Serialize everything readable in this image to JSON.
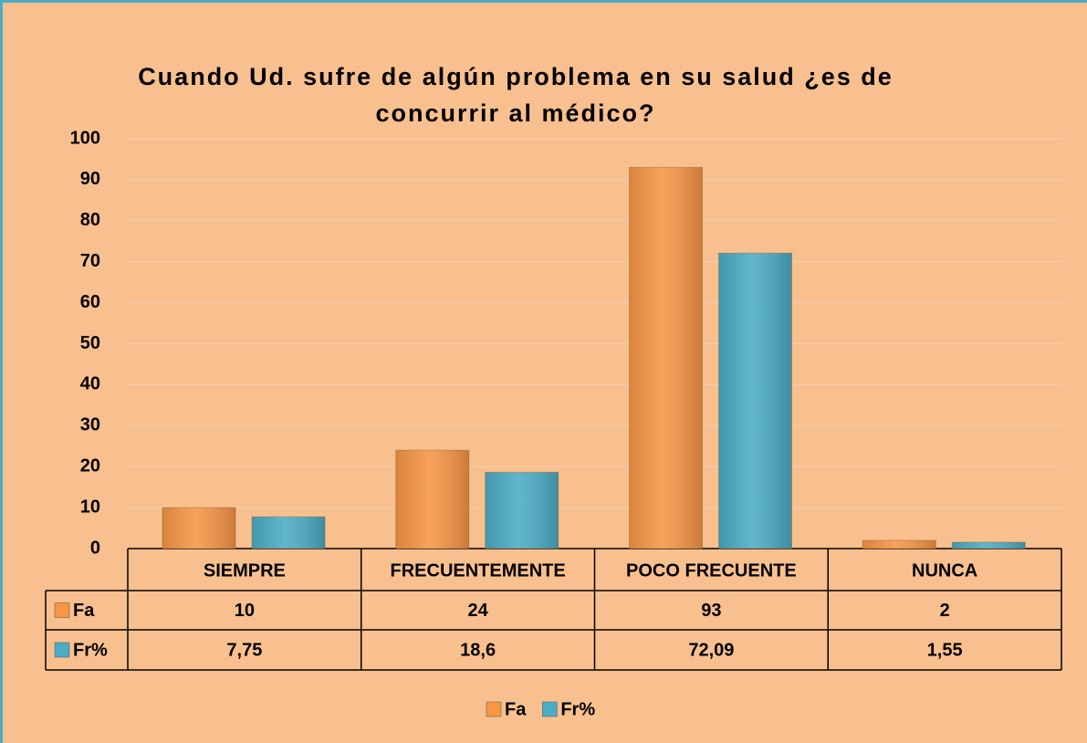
{
  "chart_data": {
    "type": "bar",
    "title": "Cuando Ud. sufre de algún problema en su salud ¿es de concurrir al médico?",
    "categories": [
      "SIEMPRE",
      "FRECUENTEMENTE",
      "POCO FRECUENTE",
      "NUNCA"
    ],
    "series": [
      {
        "name": "Fa",
        "color": "#f79646",
        "values": [
          10,
          24,
          93,
          2
        ]
      },
      {
        "name": "Fr%",
        "color": "#4bacc6",
        "values": [
          7.75,
          18.6,
          72.09,
          1.55
        ],
        "value_labels": [
          "7,75",
          "18,6",
          "72,09",
          "1,55"
        ]
      }
    ],
    "ylim": [
      0,
      100
    ],
    "yticks": [
      0,
      10,
      20,
      30,
      40,
      50,
      60,
      70,
      80,
      90,
      100
    ],
    "grid": true,
    "legend": "bottom"
  }
}
